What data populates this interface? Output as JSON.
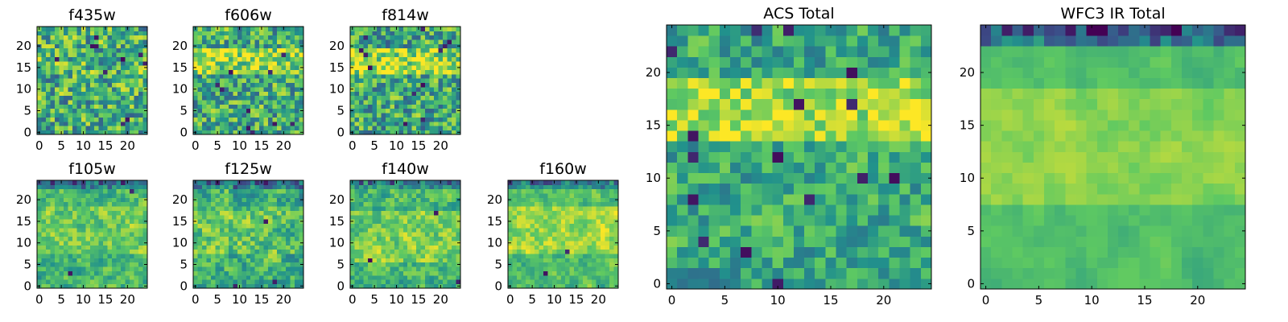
{
  "figure": {
    "background": "#ffffff"
  },
  "colormap": {
    "name": "viridis",
    "stops": [
      "#440154",
      "#3b528b",
      "#21918c",
      "#5ec962",
      "#fde725"
    ]
  },
  "chart_data": [
    {
      "type": "heatmap",
      "id": "f435w",
      "title": "f435w",
      "grid_size": 25,
      "xticks": [
        0,
        5,
        10,
        15,
        20
      ],
      "yticks": [
        0,
        5,
        10,
        15,
        20
      ],
      "xlim": [
        -0.5,
        24.5
      ],
      "ylim": [
        -0.5,
        24.5
      ],
      "value_range": [
        0,
        1
      ],
      "texture": {
        "seed": 11,
        "base": 0.62,
        "band_rows": [
          14,
          17
        ],
        "band_strength": 0.05,
        "top_dark": 0.0,
        "noise": 0.45,
        "smooth": 0.15,
        "dark_spots": 10
      }
    },
    {
      "type": "heatmap",
      "id": "f606w",
      "title": "f606w",
      "grid_size": 25,
      "xticks": [
        0,
        5,
        10,
        15,
        20
      ],
      "yticks": [
        0,
        5,
        10,
        15,
        20
      ],
      "xlim": [
        -0.5,
        24.5
      ],
      "ylim": [
        -0.5,
        24.5
      ],
      "value_range": [
        0,
        1
      ],
      "texture": {
        "seed": 23,
        "base": 0.62,
        "band_rows": [
          14,
          19
        ],
        "band_strength": 0.22,
        "top_dark": 0.0,
        "noise": 0.45,
        "smooth": 0.2,
        "dark_spots": 10
      }
    },
    {
      "type": "heatmap",
      "id": "f814w",
      "title": "f814w",
      "grid_size": 25,
      "xticks": [
        0,
        5,
        10,
        15,
        20
      ],
      "yticks": [
        0,
        5,
        10,
        15,
        20
      ],
      "xlim": [
        -0.5,
        24.5
      ],
      "ylim": [
        -0.5,
        24.5
      ],
      "value_range": [
        0,
        1
      ],
      "texture": {
        "seed": 37,
        "base": 0.6,
        "band_rows": [
          14,
          19
        ],
        "band_strength": 0.25,
        "top_dark": 0.0,
        "noise": 0.45,
        "smooth": 0.2,
        "dark_spots": 12
      }
    },
    {
      "type": "heatmap",
      "id": "f105w",
      "title": "f105w",
      "grid_size": 25,
      "xticks": [
        0,
        5,
        10,
        15,
        20
      ],
      "yticks": [
        0,
        5,
        10,
        15,
        20
      ],
      "xlim": [
        -0.5,
        24.5
      ],
      "ylim": [
        -0.5,
        24.5
      ],
      "value_range": [
        0,
        1
      ],
      "texture": {
        "seed": 41,
        "base": 0.66,
        "band_rows": [
          8,
          18
        ],
        "band_strength": 0.1,
        "top_dark": 0.35,
        "noise": 0.35,
        "smooth": 0.5,
        "dark_spots": 3
      }
    },
    {
      "type": "heatmap",
      "id": "f125w",
      "title": "f125w",
      "grid_size": 25,
      "xticks": [
        0,
        5,
        10,
        15,
        20
      ],
      "yticks": [
        0,
        5,
        10,
        15,
        20
      ],
      "xlim": [
        -0.5,
        24.5
      ],
      "ylim": [
        -0.5,
        24.5
      ],
      "value_range": [
        0,
        1
      ],
      "texture": {
        "seed": 53,
        "base": 0.64,
        "band_rows": [
          8,
          18
        ],
        "band_strength": 0.08,
        "top_dark": 0.3,
        "noise": 0.4,
        "smooth": 0.45,
        "dark_spots": 4
      }
    },
    {
      "type": "heatmap",
      "id": "f140w",
      "title": "f140w",
      "grid_size": 25,
      "xticks": [
        0,
        5,
        10,
        15,
        20
      ],
      "yticks": [
        0,
        5,
        10,
        15,
        20
      ],
      "xlim": [
        -0.5,
        24.5
      ],
      "ylim": [
        -0.5,
        24.5
      ],
      "value_range": [
        0,
        1
      ],
      "texture": {
        "seed": 67,
        "base": 0.67,
        "band_rows": [
          6,
          17
        ],
        "band_strength": 0.12,
        "top_dark": 0.3,
        "noise": 0.35,
        "smooth": 0.5,
        "dark_spots": 3
      }
    },
    {
      "type": "heatmap",
      "id": "f160w",
      "title": "f160w",
      "grid_size": 25,
      "xticks": [
        0,
        5,
        10,
        15,
        20
      ],
      "yticks": [
        0,
        5,
        10,
        15,
        20
      ],
      "xlim": [
        -0.5,
        24.5
      ],
      "ylim": [
        -0.5,
        24.5
      ],
      "value_range": [
        0,
        1
      ],
      "texture": {
        "seed": 79,
        "base": 0.7,
        "band_rows": [
          8,
          18
        ],
        "band_strength": 0.15,
        "top_dark": 0.35,
        "noise": 0.3,
        "smooth": 0.55,
        "dark_spots": 2
      }
    },
    {
      "type": "heatmap",
      "id": "acs-total",
      "title": "ACS Total",
      "grid_size": 25,
      "xticks": [
        0,
        5,
        10,
        15,
        20
      ],
      "yticks": [
        0,
        5,
        10,
        15,
        20
      ],
      "xlim": [
        -0.5,
        24.5
      ],
      "ylim": [
        -0.5,
        24.5
      ],
      "value_range": [
        0,
        1
      ],
      "texture": {
        "seed": 97,
        "base": 0.6,
        "band_rows": [
          14,
          19
        ],
        "band_strength": 0.25,
        "top_dark": 0.0,
        "noise": 0.35,
        "smooth": 0.35,
        "dark_spots": 16
      }
    },
    {
      "type": "heatmap",
      "id": "wfc3-ir-total",
      "title": "WFC3 IR Total",
      "grid_size": 25,
      "xticks": [
        0,
        5,
        10,
        15,
        20
      ],
      "yticks": [
        0,
        5,
        10,
        15,
        20
      ],
      "xlim": [
        -0.5,
        24.5
      ],
      "ylim": [
        -0.5,
        24.5
      ],
      "value_range": [
        0,
        1
      ],
      "texture": {
        "seed": 131,
        "base": 0.7,
        "band_rows": [
          8,
          18
        ],
        "band_strength": 0.12,
        "top_dark": 0.55,
        "noise": 0.18,
        "smooth": 0.75,
        "dark_spots": 0
      }
    }
  ]
}
